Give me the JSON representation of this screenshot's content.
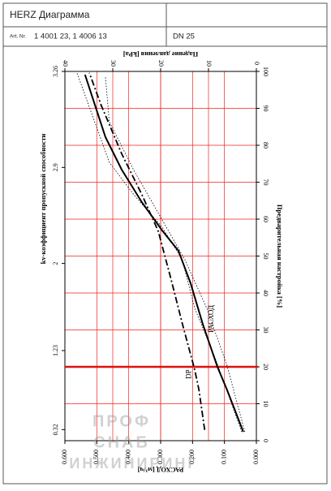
{
  "header": {
    "title": "HERZ Диаграмма",
    "art_label": "Art. Nr.",
    "art": "1 4001 23, 1 4006 13",
    "dn": "DN 25"
  },
  "watermark": [
    "ПРОФ",
    "СНАБ",
    "ИНЖИНИРИНГ"
  ],
  "chart_data": {
    "type": "line",
    "xlabel": "РАСХОД [м³/ч]",
    "x2label": "Падение давления [kPa]",
    "ylabel": "Предварительная настройка [%]",
    "kv_label": "kv-коэффициент пропускной способности",
    "xlim": [
      0.6,
      0
    ],
    "xticks": [
      {
        "value": 0.6,
        "label": "0.600"
      },
      {
        "value": 0.5,
        "label": "0.500"
      },
      {
        "value": 0.4,
        "label": "0.400"
      },
      {
        "value": 0.3,
        "label": "0.300"
      },
      {
        "value": 0.2,
        "label": "0.200"
      },
      {
        "value": 0.1,
        "label": "0.100"
      },
      {
        "value": 0,
        "label": "0.000"
      }
    ],
    "x2lim": [
      40,
      0
    ],
    "x2ticks": [
      40,
      30,
      20,
      10,
      0
    ],
    "ylim": [
      0,
      100
    ],
    "yticks": [
      0,
      10,
      20,
      30,
      40,
      50,
      60,
      70,
      80,
      90,
      100
    ],
    "kv_ticks": [
      {
        "value": 100,
        "label": "3.26"
      },
      {
        "value": 74,
        "label": "2.9"
      },
      {
        "value": 48,
        "label": "2"
      },
      {
        "value": 24.4,
        "label": "1.23"
      },
      {
        "value": 3,
        "label": "0.32"
      }
    ],
    "grid": true,
    "grid_color": "#ee2222",
    "highlight_y": 20,
    "highlight_color": "#dd1111",
    "annotations": [
      {
        "text": "DP",
        "x": 0.21,
        "y": 18
      },
      {
        "text": "РАСХОД",
        "x": 0.14,
        "y": 33
      }
    ],
    "series": [
      {
        "color": "#000000",
        "style": "solid",
        "width": 2,
        "x": [
          0.041,
          0.092,
          0.122,
          0.168,
          0.206,
          0.244,
          0.295,
          0.359,
          0.422,
          0.473,
          0.537
        ],
        "y": [
          2.4,
          13.8,
          20,
          31.6,
          42.6,
          51.4,
          56.9,
          64.6,
          73.4,
          82.2,
          99.1
        ]
      },
      {
        "color": "#000000",
        "style": "dashdot",
        "width": 1.8,
        "axis": "x2",
        "x": [
          10.8,
          12,
          12.9,
          15.4,
          18,
          20.5,
          23.9,
          28.1,
          32.4,
          34.9
        ],
        "y": [
          2.9,
          13.8,
          19.3,
          31.4,
          44.6,
          56.7,
          66.6,
          77.6,
          90.8,
          99.6
        ]
      },
      {
        "color": "#000000",
        "style": "dotted",
        "width": 0.8,
        "x": [
          0.046,
          0.13,
          0.193,
          0.232,
          0.295,
          0.384,
          0.461,
          0.562
        ],
        "y": [
          2.4,
          22.6,
          35.8,
          49,
          57.8,
          66.6,
          75.4,
          99.6
        ]
      },
      {
        "color": "#000000",
        "style": "dotted",
        "width": 0.8,
        "x": [
          0.036,
          0.092,
          0.155,
          0.224,
          0.282,
          0.384,
          0.461,
          0.473
        ],
        "y": [
          2.4,
          20.4,
          35.8,
          49,
          57.8,
          73.2,
          86.4,
          98.5
        ]
      }
    ]
  }
}
